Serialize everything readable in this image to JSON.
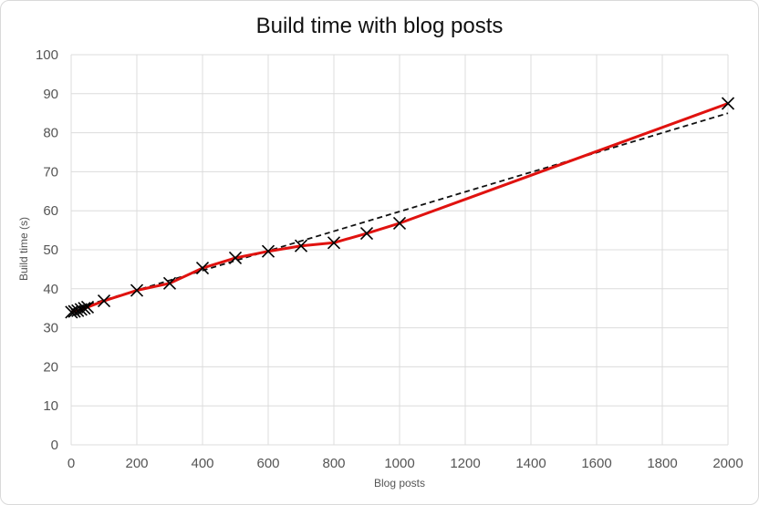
{
  "chart_data": {
    "type": "line",
    "title": "Build time with blog posts",
    "xlabel": "Blog posts",
    "ylabel": "Build time (s)",
    "xlim": [
      0,
      2000
    ],
    "ylim": [
      0,
      100
    ],
    "xticks": [
      0,
      200,
      400,
      600,
      800,
      1000,
      1200,
      1400,
      1600,
      1800,
      2000
    ],
    "yticks": [
      0,
      10,
      20,
      30,
      40,
      50,
      60,
      70,
      80,
      90,
      100
    ],
    "grid": true,
    "series": [
      {
        "style": "solid-with-x-markers",
        "color": "#e0120f",
        "x": [
          1,
          10,
          20,
          30,
          40,
          50,
          100,
          200,
          300,
          400,
          500,
          600,
          700,
          800,
          900,
          1000,
          2000
        ],
        "y": [
          34.0,
          34.2,
          34.4,
          34.7,
          35.0,
          35.3,
          36.9,
          39.6,
          41.4,
          45.3,
          47.9,
          49.6,
          51.0,
          51.8,
          54.2,
          56.8,
          87.5
        ]
      },
      {
        "style": "dashed-trend",
        "color": "#111111",
        "x": [
          0,
          2000
        ],
        "y": [
          34.6,
          85.0
        ]
      }
    ]
  }
}
